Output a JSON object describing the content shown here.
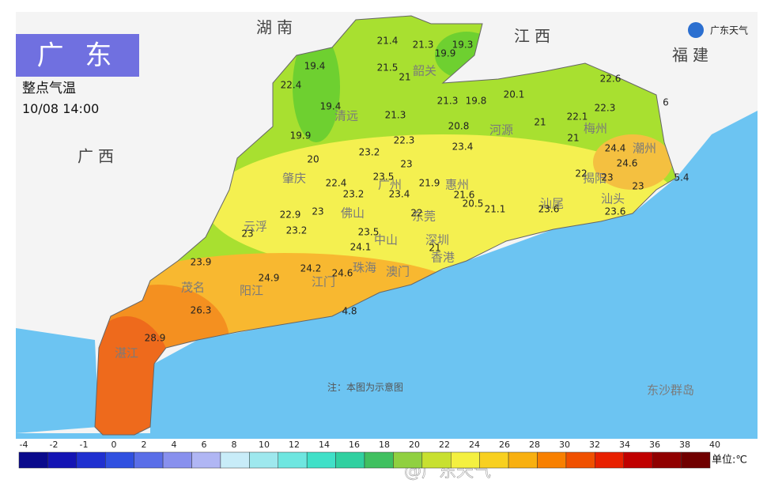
{
  "header": {
    "region": "广 东",
    "title": "整点气温",
    "time": "10/08 14:00",
    "logo": "广东天气"
  },
  "provinces": [
    "湖南",
    "江西",
    "福建",
    "广西"
  ],
  "cities": [
    "清远",
    "韶关",
    "河源",
    "梅州",
    "潮州",
    "揭阳",
    "汕头",
    "汕尾",
    "惠州",
    "广州",
    "东莞",
    "深圳",
    "香港",
    "佛山",
    "肇庆",
    "云浮",
    "中山",
    "珠海",
    "澳门",
    "江门",
    "阳江",
    "茂名",
    "湛江",
    "东沙群岛"
  ],
  "temperatures": [
    21.4,
    21.3,
    19.3,
    19.9,
    19.4,
    21.5,
    21,
    22.4,
    22.6,
    22.3,
    6,
    19.4,
    21.3,
    21.3,
    19.8,
    20.1,
    22.1,
    21,
    21,
    20.8,
    22.3,
    23.4,
    19.9,
    20,
    23.2,
    24.4,
    24.6,
    23.5,
    23,
    22,
    23,
    23,
    5.4,
    22.4,
    23.2,
    21.9,
    23.4,
    21.6,
    20.5,
    21.1,
    23.6,
    23.6,
    22.9,
    23,
    22,
    23,
    23.2,
    23.5,
    24.1,
    21,
    23.9,
    24.9,
    24.2,
    24.6,
    26.3,
    4.8,
    28.9
  ],
  "note": "注：本图为示意图",
  "colorbar": {
    "labels": [
      -4,
      -2,
      -1,
      0,
      2,
      4,
      6,
      8,
      10,
      12,
      14,
      16,
      18,
      20,
      22,
      24,
      26,
      28,
      30,
      32,
      34,
      36,
      38,
      40
    ],
    "colors": [
      "#0a0a8c",
      "#1414b4",
      "#2030d0",
      "#3050e0",
      "#5a6ee8",
      "#8890ee",
      "#b0b6f4",
      "#c8ecf8",
      "#9ee8ee",
      "#6ee6e0",
      "#40e0c8",
      "#30d0a0",
      "#40c060",
      "#90d040",
      "#c8e030",
      "#f4f040",
      "#f8d020",
      "#f8b010",
      "#f88000",
      "#f05000",
      "#e82000",
      "#c00000",
      "#900000",
      "#700000"
    ],
    "unit": "单位:℃"
  },
  "watermark": "@广东天气"
}
